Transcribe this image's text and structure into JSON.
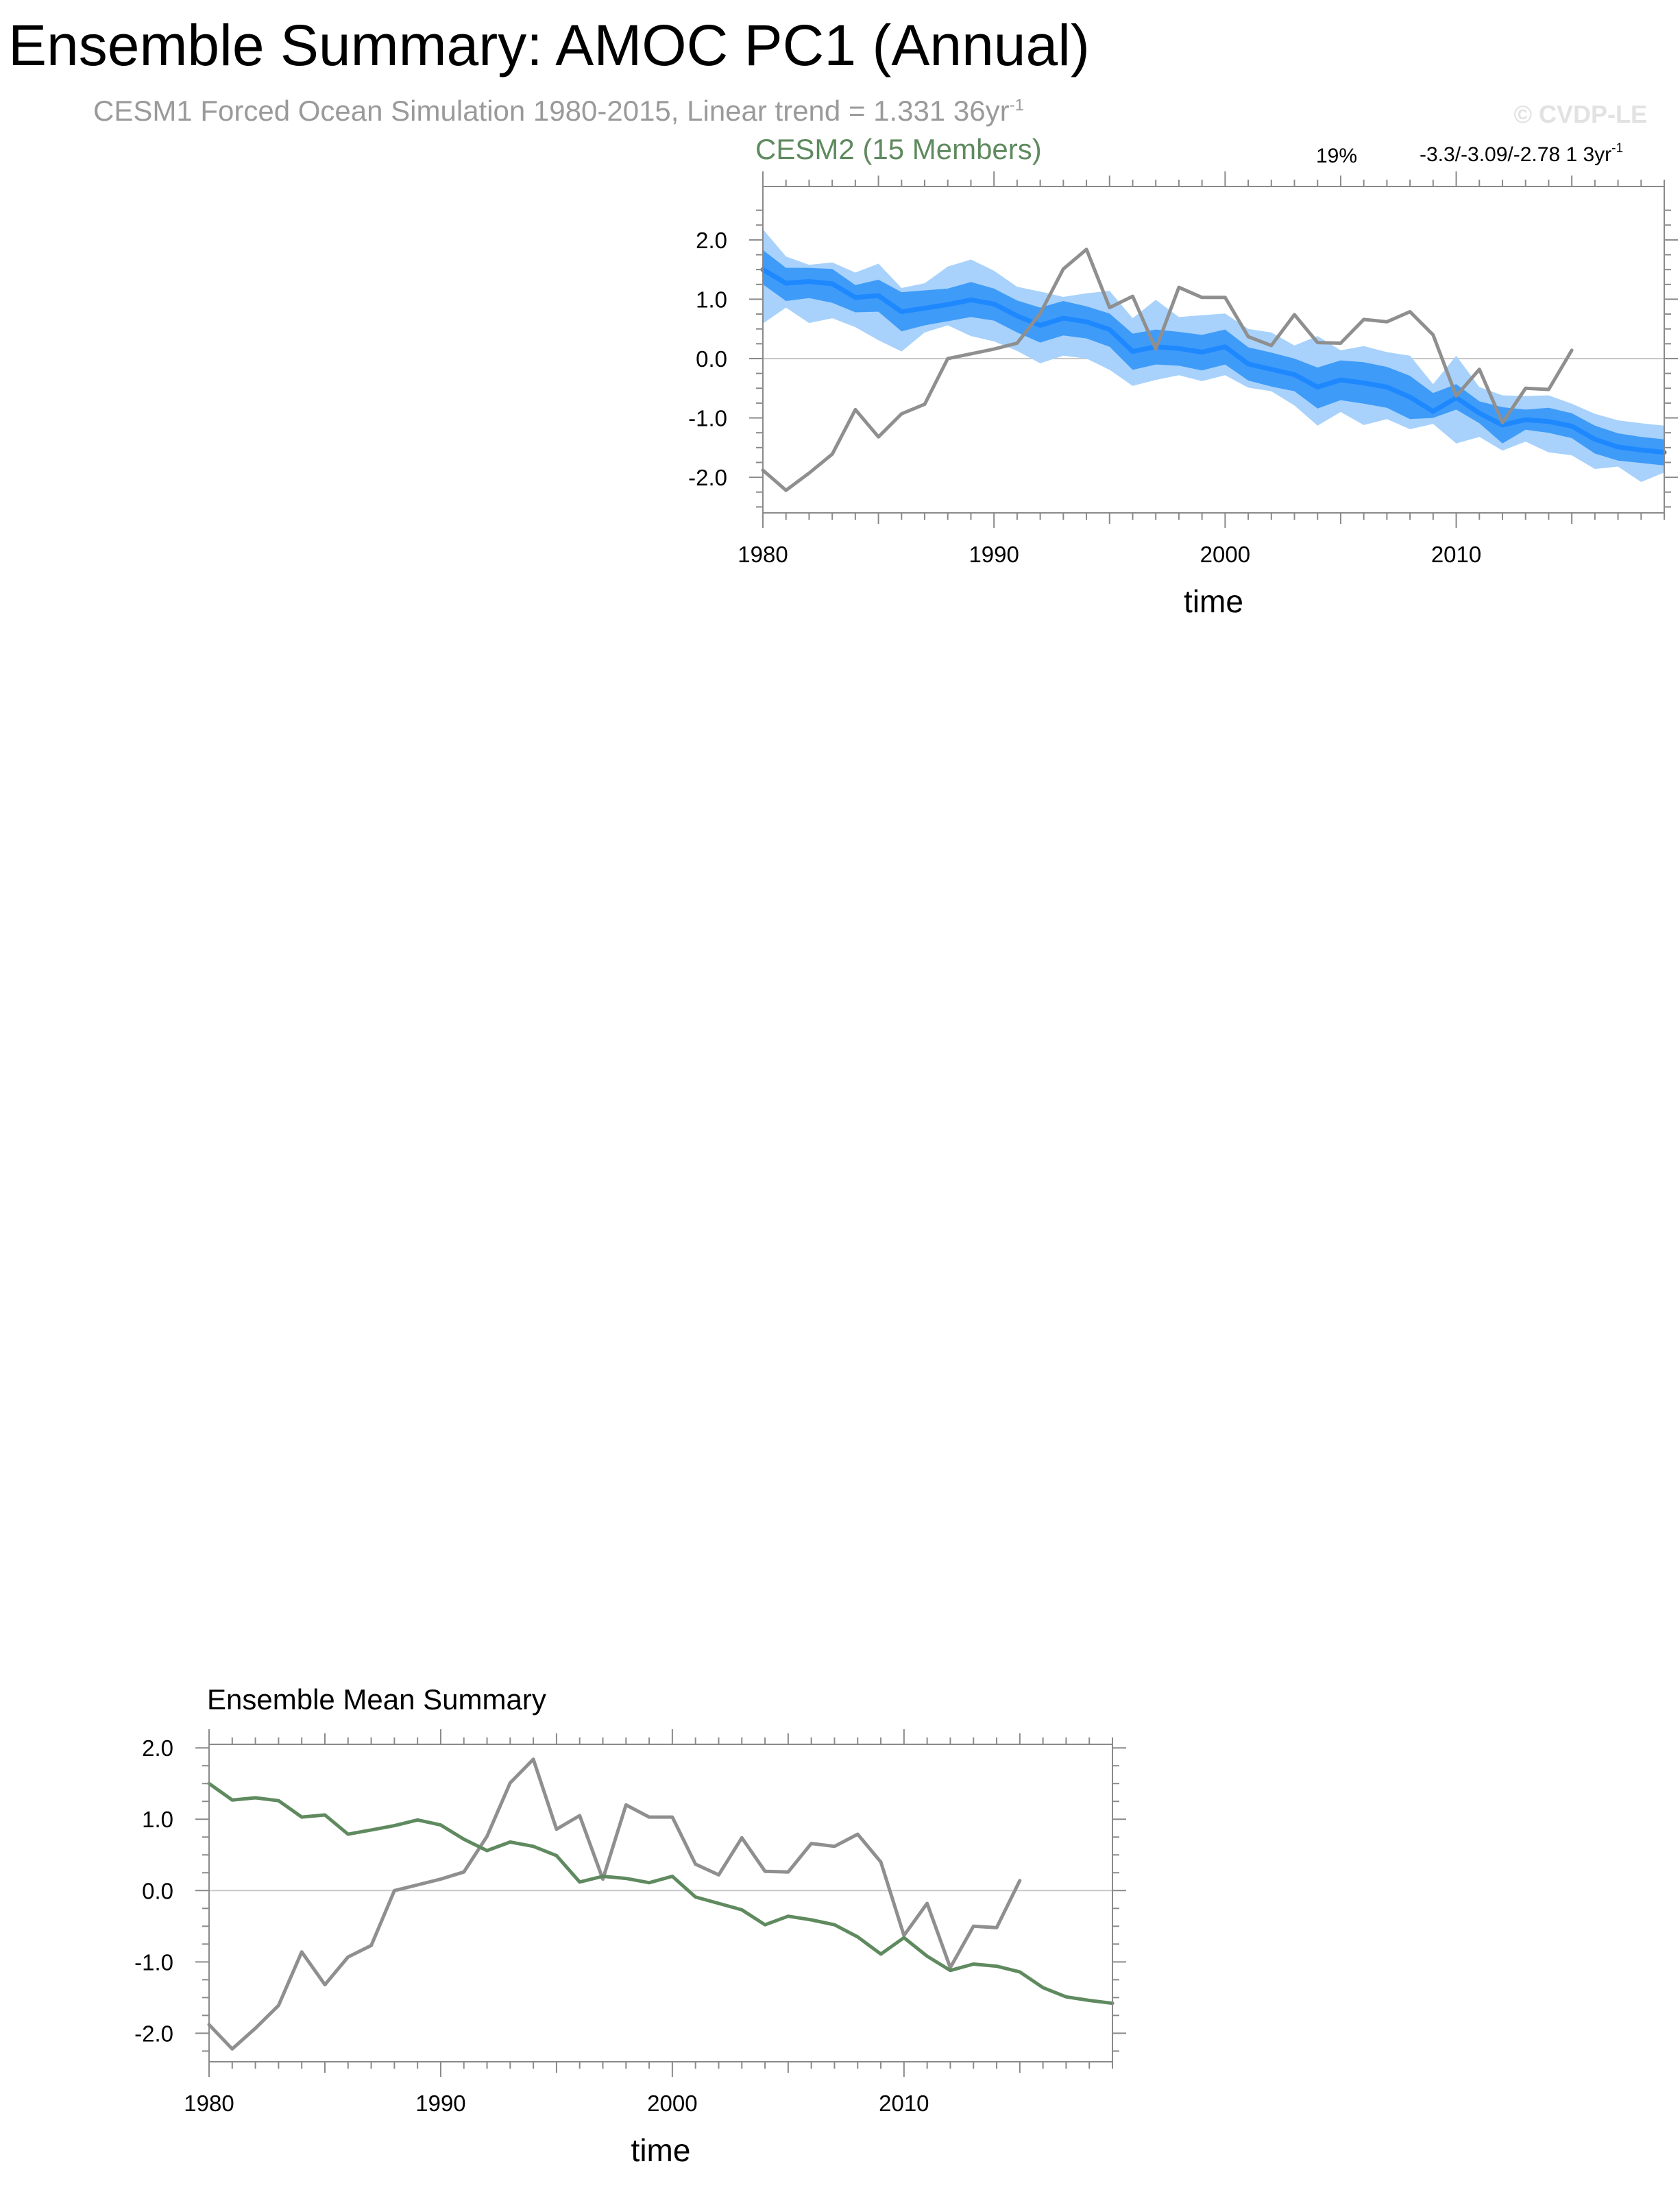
{
  "header": {
    "title": "Ensemble Summary: AMOC PC1 (Annual)",
    "subtitle_text": "CESM1 Forced Ocean Simulation 1980-2015, Linear trend = 1.331 36yr",
    "subtitle_exponent": "-1",
    "watermark": "© CVDP-LE"
  },
  "colors": {
    "ensemble_mean_band": "#1e88ff",
    "spread_inner_band": "#3f9bf8",
    "spread_outer_band": "#a8d2fb",
    "observation_line": "#8f8f8f",
    "cesm2_label": "#5f8a5f",
    "ensemble_mean_line": "#5f8a5f",
    "zero_line": "#c8c8c8"
  },
  "chart_data": [
    {
      "type": "line",
      "title": "CESM2 (15 Members)",
      "annotations": {
        "percent": "19%",
        "trend_text": "-3.3/-3.09/-2.78 1 3yr",
        "trend_exponent": "-1"
      },
      "xlabel": "time",
      "ylabel": "",
      "xlim": [
        1980,
        2019
      ],
      "ylim": [
        -2.6,
        2.9
      ],
      "x_ticks": [
        1980,
        1990,
        2000,
        2010
      ],
      "y_ticks": [
        2.0,
        1.0,
        0.0,
        -1.0,
        -2.0
      ],
      "y_tick_labels": [
        "2.0",
        "1.0",
        "0.0",
        "-1.0",
        "-2.0"
      ],
      "reference_line_y": 0,
      "series": [
        {
          "role": "ensemble_mean",
          "x": [
            1980,
            1981,
            1982,
            1983,
            1984,
            1985,
            1986,
            1987,
            1988,
            1989,
            1990,
            1991,
            1992,
            1993,
            1994,
            1995,
            1996,
            1997,
            1998,
            1999,
            2000,
            2001,
            2002,
            2003,
            2004,
            2005,
            2006,
            2007,
            2008,
            2009,
            2010,
            2011,
            2012,
            2013,
            2014,
            2015,
            2016,
            2017,
            2018,
            2019
          ],
          "values": [
            1.5,
            1.27,
            1.3,
            1.26,
            1.03,
            1.06,
            0.79,
            0.85,
            0.91,
            0.99,
            0.92,
            0.72,
            0.56,
            0.68,
            0.62,
            0.49,
            0.12,
            0.2,
            0.17,
            0.11,
            0.2,
            -0.09,
            -0.18,
            -0.27,
            -0.48,
            -0.36,
            -0.41,
            -0.48,
            -0.65,
            -0.89,
            -0.66,
            -0.92,
            -1.12,
            -1.03,
            -1.06,
            -1.14,
            -1.36,
            -1.49,
            -1.54,
            -1.58
          ]
        },
        {
          "role": "spread_inner_low",
          "values": [
            1.25,
            0.97,
            1.02,
            0.94,
            0.78,
            0.79,
            0.46,
            0.56,
            0.63,
            0.7,
            0.64,
            0.44,
            0.27,
            0.39,
            0.34,
            0.2,
            -0.19,
            -0.1,
            -0.12,
            -0.2,
            -0.1,
            -0.37,
            -0.47,
            -0.55,
            -0.84,
            -0.7,
            -0.76,
            -0.83,
            -1.02,
            -1.0,
            -0.86,
            -1.09,
            -1.43,
            -1.2,
            -1.25,
            -1.34,
            -1.6,
            -1.72,
            -1.76,
            -1.8
          ]
        },
        {
          "role": "spread_inner_high",
          "values": [
            1.83,
            1.53,
            1.53,
            1.51,
            1.24,
            1.33,
            1.12,
            1.15,
            1.18,
            1.29,
            1.18,
            0.98,
            0.86,
            0.97,
            0.88,
            0.76,
            0.42,
            0.49,
            0.45,
            0.4,
            0.49,
            0.19,
            0.1,
            0.0,
            -0.15,
            -0.03,
            -0.06,
            -0.14,
            -0.29,
            -0.58,
            -0.43,
            -0.72,
            -0.82,
            -0.86,
            -0.83,
            -0.92,
            -1.13,
            -1.26,
            -1.32,
            -1.36
          ]
        },
        {
          "role": "spread_outer_low",
          "values": [
            0.59,
            0.86,
            0.6,
            0.68,
            0.53,
            0.31,
            0.12,
            0.44,
            0.56,
            0.38,
            0.29,
            0.13,
            -0.08,
            0.05,
            0.0,
            -0.19,
            -0.46,
            -0.36,
            -0.28,
            -0.38,
            -0.28,
            -0.49,
            -0.55,
            -0.79,
            -1.13,
            -0.9,
            -1.12,
            -1.02,
            -1.19,
            -1.1,
            -1.43,
            -1.32,
            -1.55,
            -1.4,
            -1.58,
            -1.63,
            -1.86,
            -1.82,
            -2.08,
            -1.92
          ]
        },
        {
          "role": "spread_outer_high",
          "values": [
            2.18,
            1.72,
            1.58,
            1.62,
            1.45,
            1.6,
            1.19,
            1.27,
            1.55,
            1.67,
            1.48,
            1.21,
            1.13,
            1.04,
            1.1,
            1.14,
            0.68,
            0.99,
            0.7,
            0.73,
            0.76,
            0.5,
            0.44,
            0.22,
            0.38,
            0.14,
            0.21,
            0.11,
            0.05,
            -0.43,
            0.05,
            -0.48,
            -0.62,
            -0.63,
            -0.62,
            -0.76,
            -0.93,
            -1.04,
            -1.09,
            -1.13
          ]
        },
        {
          "role": "observations",
          "x": [
            1980,
            1981,
            1982,
            1983,
            1984,
            1985,
            1986,
            1987,
            1988,
            1989,
            1990,
            1991,
            1992,
            1993,
            1994,
            1995,
            1996,
            1997,
            1998,
            1999,
            2000,
            2001,
            2002,
            2003,
            2004,
            2005,
            2006,
            2007,
            2008,
            2009,
            2010,
            2011,
            2012,
            2013,
            2014,
            2015
          ],
          "values": [
            -1.88,
            -2.22,
            -1.93,
            -1.61,
            -0.86,
            -1.32,
            -0.93,
            -0.77,
            0.0,
            0.08,
            0.16,
            0.26,
            0.76,
            1.51,
            1.84,
            0.86,
            1.05,
            0.16,
            1.2,
            1.03,
            1.03,
            0.37,
            0.22,
            0.74,
            0.27,
            0.26,
            0.66,
            0.62,
            0.79,
            0.4,
            -0.63,
            -0.18,
            -1.08,
            -0.5,
            -0.52,
            0.14
          ]
        }
      ]
    },
    {
      "type": "line",
      "title": "Ensemble Mean Summary",
      "xlabel": "time",
      "ylabel": "",
      "xlim": [
        1980,
        2019
      ],
      "ylim": [
        -2.4,
        2.05
      ],
      "x_ticks": [
        1980,
        1990,
        2000,
        2010
      ],
      "y_ticks": [
        2.0,
        1.0,
        0.0,
        -1.0,
        -2.0
      ],
      "y_tick_labels": [
        "2.0",
        "1.0",
        "0.0",
        "-1.0",
        "-2.0"
      ],
      "reference_line_y": 0,
      "series": [
        {
          "role": "ensemble_mean",
          "x": [
            1980,
            1981,
            1982,
            1983,
            1984,
            1985,
            1986,
            1987,
            1988,
            1989,
            1990,
            1991,
            1992,
            1993,
            1994,
            1995,
            1996,
            1997,
            1998,
            1999,
            2000,
            2001,
            2002,
            2003,
            2004,
            2005,
            2006,
            2007,
            2008,
            2009,
            2010,
            2011,
            2012,
            2013,
            2014,
            2015,
            2016,
            2017,
            2018,
            2019
          ],
          "values": [
            1.5,
            1.27,
            1.3,
            1.26,
            1.03,
            1.06,
            0.79,
            0.85,
            0.91,
            0.99,
            0.92,
            0.72,
            0.56,
            0.68,
            0.62,
            0.49,
            0.12,
            0.2,
            0.17,
            0.11,
            0.2,
            -0.09,
            -0.18,
            -0.27,
            -0.48,
            -0.36,
            -0.41,
            -0.48,
            -0.65,
            -0.89,
            -0.66,
            -0.92,
            -1.12,
            -1.03,
            -1.06,
            -1.14,
            -1.36,
            -1.49,
            -1.54,
            -1.58
          ]
        },
        {
          "role": "observations",
          "x": [
            1980,
            1981,
            1982,
            1983,
            1984,
            1985,
            1986,
            1987,
            1988,
            1989,
            1990,
            1991,
            1992,
            1993,
            1994,
            1995,
            1996,
            1997,
            1998,
            1999,
            2000,
            2001,
            2002,
            2003,
            2004,
            2005,
            2006,
            2007,
            2008,
            2009,
            2010,
            2011,
            2012,
            2013,
            2014,
            2015
          ],
          "values": [
            -1.88,
            -2.22,
            -1.93,
            -1.61,
            -0.86,
            -1.32,
            -0.93,
            -0.77,
            0.0,
            0.08,
            0.16,
            0.26,
            0.76,
            1.51,
            1.84,
            0.86,
            1.05,
            0.16,
            1.2,
            1.03,
            1.03,
            0.37,
            0.22,
            0.74,
            0.27,
            0.26,
            0.66,
            0.62,
            0.79,
            0.4,
            -0.63,
            -0.18,
            -1.08,
            -0.5,
            -0.52,
            0.14
          ]
        }
      ]
    }
  ]
}
